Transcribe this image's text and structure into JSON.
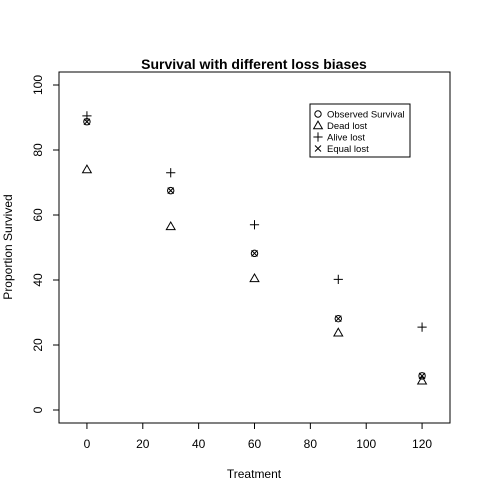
{
  "chart_data": {
    "type": "scatter",
    "title": "Survival with different loss biases",
    "xlabel": "Treatment",
    "ylabel": "Proportion Survived",
    "xlim": [
      -10,
      130
    ],
    "ylim": [
      -4,
      104
    ],
    "xticks": [
      0,
      20,
      40,
      60,
      80,
      100,
      120
    ],
    "yticks": [
      0,
      20,
      40,
      60,
      80,
      100
    ],
    "grid": false,
    "legend_position": "top-right",
    "x": [
      0,
      30,
      60,
      90,
      120
    ],
    "series": [
      {
        "name": "Observed Survival",
        "marker": "circle",
        "values": [
          88.7,
          67.5,
          48.2,
          28.1,
          10.5
        ]
      },
      {
        "name": "Dead lost",
        "marker": "triangle",
        "values": [
          74.0,
          56.5,
          40.5,
          23.8,
          9.0
        ]
      },
      {
        "name": "Alive lost",
        "marker": "plus",
        "values": [
          90.5,
          73.0,
          57.0,
          40.2,
          25.5
        ]
      },
      {
        "name": "Equal lost",
        "marker": "cross",
        "values": [
          88.7,
          67.5,
          48.2,
          28.1,
          10.5
        ]
      }
    ]
  }
}
